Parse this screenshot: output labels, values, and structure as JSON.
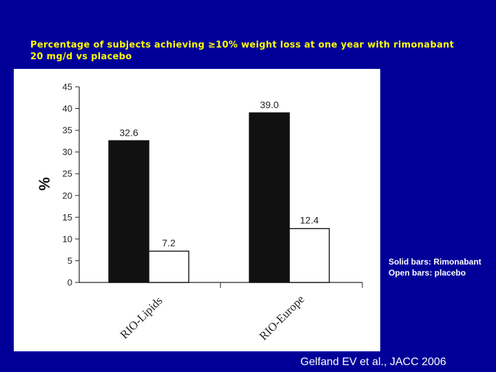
{
  "slide": {
    "title_line1": "Percentage of subjects achieving ≥10% weight loss at one year with rimonabant",
    "title_line2": "20 mg/d vs placebo",
    "legend_line1": "Solid bars: Rimonabant",
    "legend_line2": "Open bars: placebo",
    "citation": "Gelfand EV et al., JACC 2006"
  },
  "colors": {
    "background": "#000099",
    "title": "#ffff00",
    "text": "#ffffff",
    "solid_bar": "#111111",
    "open_bar": "#ffffff",
    "panel": "#ffffff"
  },
  "chart_data": {
    "type": "bar",
    "categories": [
      "RIO-Lipids",
      "RIO-Europe"
    ],
    "series": [
      {
        "values": [
          32.6,
          39.0
        ],
        "data_labels": [
          "32.6",
          "39.0"
        ],
        "fill": "solid"
      },
      {
        "values": [
          7.2,
          12.4
        ],
        "data_labels": [
          "7.2",
          "12.4"
        ],
        "fill": "open"
      }
    ],
    "ylabel": "%",
    "ylim": [
      0,
      45
    ],
    "yticks": [
      "0",
      "5",
      "10",
      "15",
      "20",
      "25",
      "30",
      "35",
      "40",
      "45"
    ],
    "grid": false,
    "legend_placement": "right, outside chart"
  }
}
